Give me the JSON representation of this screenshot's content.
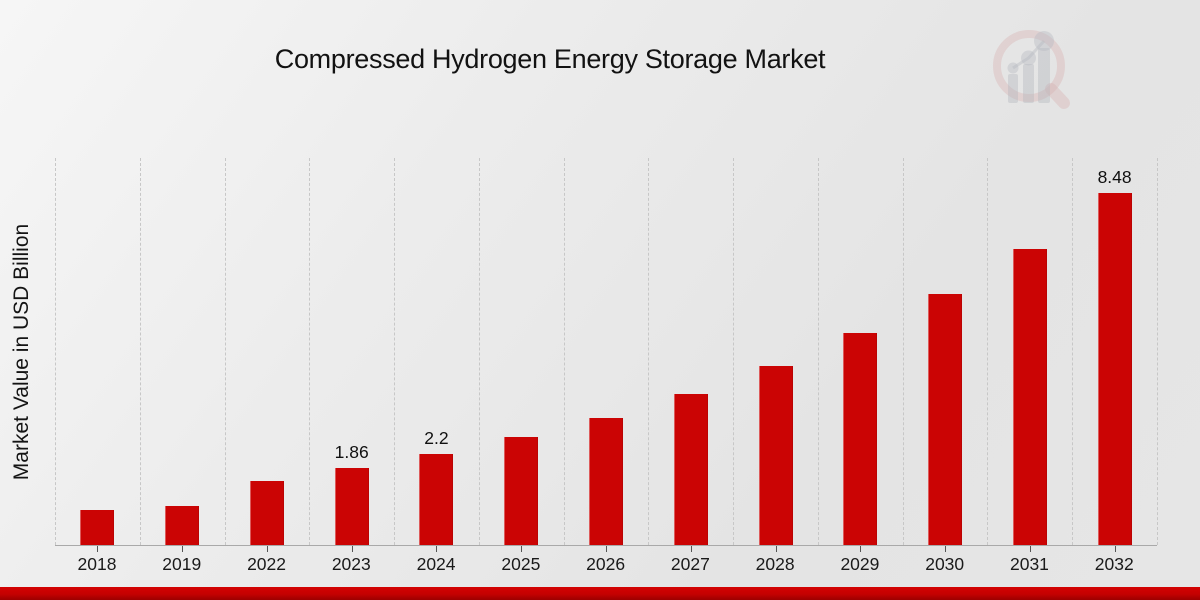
{
  "title": "Compressed Hydrogen Energy Storage Market",
  "logo": {
    "icon": "magnifier-bar-chart-logo"
  },
  "footer": {
    "accent_color": "#c40101"
  },
  "chart_data": {
    "type": "bar",
    "title": "Compressed Hydrogen Energy Storage Market",
    "categories": [
      "2018",
      "2019",
      "2022",
      "2023",
      "2024",
      "2025",
      "2026",
      "2027",
      "2028",
      "2029",
      "2030",
      "2031",
      "2032"
    ],
    "values": [
      0.84,
      0.95,
      1.55,
      1.86,
      2.2,
      2.6,
      3.07,
      3.64,
      4.32,
      5.11,
      6.05,
      7.13,
      8.48
    ],
    "data_labels": {
      "2023": "1.86",
      "2024": "2.2",
      "2032": "8.48"
    },
    "xlabel": "",
    "ylabel": "Market Value in USD Billion",
    "ylim": [
      0,
      9.33
    ],
    "bar_color": "#cb0404",
    "grid": "vertical-dashed",
    "legend": "none"
  }
}
